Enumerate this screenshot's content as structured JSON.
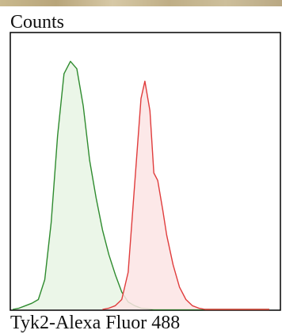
{
  "chart_data": {
    "type": "area",
    "title": "",
    "xlabel": "Tyk2-Alexa Fluor 488",
    "ylabel": "Counts",
    "x_scale": "log",
    "grid": false,
    "legend": "none",
    "series": [
      {
        "color": "#2e8b2e",
        "fill": "#e8f4e4",
        "points": [
          [
            0,
            0
          ],
          [
            0.5,
            0.5
          ],
          [
            1,
            1.5
          ],
          [
            1.5,
            2.5
          ],
          [
            2,
            4
          ],
          [
            2.5,
            12
          ],
          [
            3,
            35
          ],
          [
            3.5,
            70
          ],
          [
            4,
            95
          ],
          [
            4.5,
            100
          ],
          [
            5,
            97
          ],
          [
            5.5,
            82
          ],
          [
            6,
            60
          ],
          [
            6.5,
            45
          ],
          [
            7,
            32
          ],
          [
            7.5,
            22
          ],
          [
            8,
            14
          ],
          [
            8.5,
            7
          ],
          [
            9,
            3
          ],
          [
            9.5,
            1.5
          ],
          [
            10,
            0.5
          ],
          [
            11,
            0
          ],
          [
            20,
            0
          ]
        ]
      },
      {
        "color": "#e03c3c",
        "fill": "#fbe4e4",
        "points": [
          [
            7,
            0
          ],
          [
            7.5,
            0.5
          ],
          [
            8,
            1.5
          ],
          [
            8.5,
            4
          ],
          [
            9,
            15
          ],
          [
            9.5,
            50
          ],
          [
            10,
            85
          ],
          [
            10.3,
            92
          ],
          [
            10.7,
            80
          ],
          [
            11,
            55
          ],
          [
            11.3,
            52
          ],
          [
            11.7,
            40
          ],
          [
            12,
            30
          ],
          [
            12.5,
            18
          ],
          [
            13,
            9
          ],
          [
            13.5,
            4
          ],
          [
            14,
            1.5
          ],
          [
            14.5,
            0.5
          ],
          [
            15,
            0
          ],
          [
            20,
            0
          ]
        ]
      }
    ],
    "xlim": [
      0,
      20
    ],
    "ylim": [
      0,
      110
    ]
  }
}
